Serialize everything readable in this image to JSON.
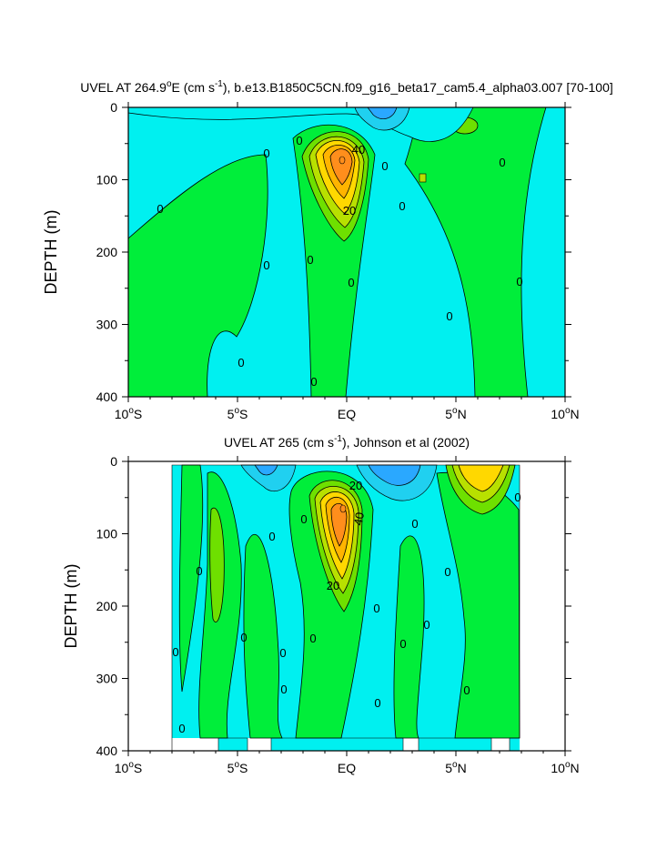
{
  "colors": {
    "cyan": "#00f0f0",
    "green": "#00ee3a",
    "light_green": "#6ee000",
    "yellow_green": "#b8e000",
    "yellow": "#ffd800",
    "gold": "#ffb400",
    "orange": "#ff8e1c",
    "blue_light": "#20d0f0",
    "blue": "#2aa8ff"
  },
  "chart_data": [
    {
      "type": "contour",
      "title_html": "UVEL AT 264.9",
      "title_parts": {
        "a": "UVEL AT 264.9",
        "deg": "o",
        "b": "E (cm s",
        "sup": "-1",
        "c": "), b.e13.B1850C5CN.f09_g16_beta17_cam5.4_alpha03.007 [70-100]"
      },
      "ylabel": "DEPTH (m)",
      "xlim": [
        -10,
        10
      ],
      "ylim": [
        400,
        0
      ],
      "yticks": [
        "0",
        "100",
        "200",
        "300",
        "400"
      ],
      "xticks": [
        {
          "v": "10",
          "s": "S"
        },
        {
          "v": "5",
          "s": "S"
        },
        {
          "v": "EQ",
          "s": ""
        },
        {
          "v": "5",
          "s": "N"
        },
        {
          "v": "10",
          "s": "N"
        }
      ],
      "contour_labels": [
        "0",
        "0",
        "0",
        "0",
        "0",
        "0",
        "0",
        "0",
        "0",
        "0",
        "0",
        "0",
        "0",
        "20",
        "40",
        "0"
      ],
      "feature": {
        "core_lat": 0,
        "core_depth_m": 75,
        "core_max_cm_s": 40
      }
    },
    {
      "type": "contour",
      "title_parts": {
        "a": "UVEL AT 265 (cm s",
        "sup": "-1",
        "c": "), Johnson et al (2002)"
      },
      "ylabel": "DEPTH (m)",
      "xlim": [
        -10,
        10
      ],
      "ylim": [
        400,
        0
      ],
      "yticks": [
        "0",
        "100",
        "200",
        "300",
        "400"
      ],
      "xticks": [
        {
          "v": "10",
          "s": "S"
        },
        {
          "v": "5",
          "s": "S"
        },
        {
          "v": "EQ",
          "s": ""
        },
        {
          "v": "5",
          "s": "N"
        },
        {
          "v": "10",
          "s": "N"
        }
      ],
      "contour_labels": [
        "0",
        "0",
        "0",
        "0",
        "0",
        "0",
        "0",
        "0",
        "0",
        "0",
        "0",
        "0",
        "0",
        "0",
        "0",
        "0",
        "0",
        "20",
        "40",
        "20"
      ],
      "feature": {
        "core_lat": 0,
        "core_depth_m": 65,
        "core_max_cm_s": 40
      }
    }
  ]
}
